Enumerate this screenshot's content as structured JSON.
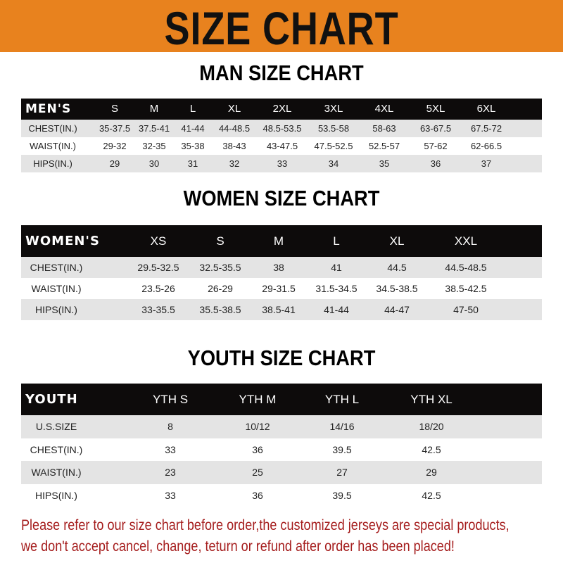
{
  "banner": {
    "title": "SIZE CHART",
    "color": "#e8821e"
  },
  "men": {
    "title": "MAN SIZE CHART",
    "header": [
      "MEN'S",
      "S",
      "M",
      "L",
      "XL",
      "2XL",
      "3XL",
      "4XL",
      "5XL",
      "6XL"
    ],
    "rows": [
      [
        "CHEST(IN.)",
        "35-37.5",
        "37.5-41",
        "41-44",
        "44-48.5",
        "48.5-53.5",
        "53.5-58",
        "58-63",
        "63-67.5",
        "67.5-72"
      ],
      [
        "WAIST(IN.)",
        "29-32",
        "32-35",
        "35-38",
        "38-43",
        "43-47.5",
        "47.5-52.5",
        "52.5-57",
        "57-62",
        "62-66.5"
      ],
      [
        "HIPS(IN.)",
        "29",
        "30",
        "31",
        "32",
        "33",
        "34",
        "35",
        "36",
        "37"
      ]
    ]
  },
  "women": {
    "title": "WOMEN SIZE CHART",
    "header": [
      "WOMEN'S",
      "XS",
      "S",
      "M",
      "L",
      "XL",
      "XXL"
    ],
    "rows": [
      [
        "CHEST(IN.)",
        "29.5-32.5",
        "32.5-35.5",
        "38",
        "41",
        "44.5",
        "44.5-48.5"
      ],
      [
        "WAIST(IN.)",
        "23.5-26",
        "26-29",
        "29-31.5",
        "31.5-34.5",
        "34.5-38.5",
        "38.5-42.5"
      ],
      [
        "HIPS(IN.)",
        "33-35.5",
        "35.5-38.5",
        "38.5-41",
        "41-44",
        "44-47",
        "47-50"
      ]
    ]
  },
  "youth": {
    "title": "YOUTH SIZE CHART",
    "header": [
      "YOUTH",
      "YTH S",
      "YTH M",
      "YTH L",
      "YTH XL"
    ],
    "rows": [
      [
        "U.S.SIZE",
        "8",
        "10/12",
        "14/16",
        "18/20"
      ],
      [
        "CHEST(IN.)",
        "33",
        "36",
        "39.5",
        "42.5"
      ],
      [
        "WAIST(IN.)",
        "23",
        "25",
        "27",
        "29"
      ],
      [
        "HIPS(IN.)",
        "33",
        "36",
        "39.5",
        "42.5"
      ]
    ]
  },
  "footer": {
    "line1": "Please refer to our size chart before order,the customized jerseys are special products,",
    "line2": "we don't accept cancel, change, teturn or refund after order has been placed!",
    "color": "#a51d1d"
  }
}
